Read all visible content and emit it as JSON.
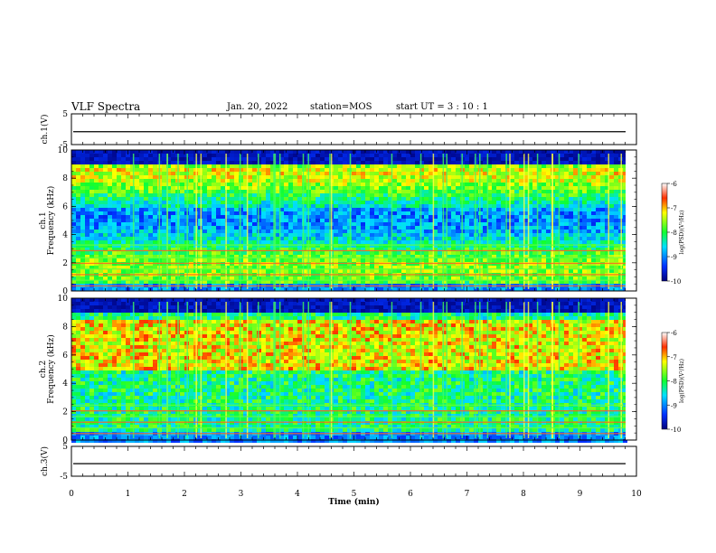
{
  "header": {
    "title": "VLF Spectra",
    "date": "Jan. 20, 2022",
    "station": "station=MOS",
    "start_ut": "start  UT =  3 : 10 : 1"
  },
  "chart_data": [
    {
      "type": "line",
      "panel": "ch1-waveform",
      "ylabel": "ch.1(V)",
      "ylim": [
        -5,
        5
      ],
      "yticks": [
        "5",
        "-5"
      ],
      "xlim": [
        0,
        10
      ],
      "level": -0.8
    },
    {
      "type": "heatmap",
      "panel": "ch1-spectrogram",
      "ylabel": "ch.1",
      "ylabel2": "Frequency (kHz)",
      "ylim": [
        0,
        10
      ],
      "yticks": [
        "0",
        "2",
        "4",
        "6",
        "8",
        "10"
      ],
      "xlim": [
        0,
        10
      ],
      "colorbar": {
        "label": "log(PSD)(V²/Hz)",
        "range": [
          -10,
          -6
        ],
        "ticks": [
          "-6",
          "-7",
          "-8",
          "-9",
          "-10"
        ]
      },
      "hlines_khz": [
        0.4,
        0.8,
        1.2,
        1.6,
        2.0,
        2.4,
        2.9,
        3.3
      ]
    },
    {
      "type": "heatmap",
      "panel": "ch2-spectrogram",
      "ylabel": "ch.2",
      "ylabel2": "Frequency (kHz)",
      "ylim": [
        0,
        10
      ],
      "yticks": [
        "0",
        "2",
        "4",
        "6",
        "8",
        "10"
      ],
      "xlim": [
        0,
        10
      ],
      "colorbar": {
        "label": "log(PSD)(V²/Hz)",
        "range": [
          -10,
          -6
        ],
        "ticks": [
          "-6",
          "-7",
          "-8",
          "-9",
          "-10"
        ]
      },
      "hlines_khz": [
        0.5,
        0.9,
        1.3,
        1.7,
        2.1,
        2.5
      ]
    },
    {
      "type": "line",
      "panel": "ch3-waveform",
      "ylabel": "ch.3(V)",
      "ylim": [
        -5,
        5
      ],
      "yticks": [
        "5",
        "-5"
      ],
      "xlim": [
        0,
        10
      ],
      "level": -0.8,
      "xlabel": "Time (min)",
      "xticks": [
        "0",
        "1",
        "2",
        "3",
        "4",
        "5",
        "6",
        "7",
        "8",
        "9",
        "10"
      ]
    }
  ]
}
